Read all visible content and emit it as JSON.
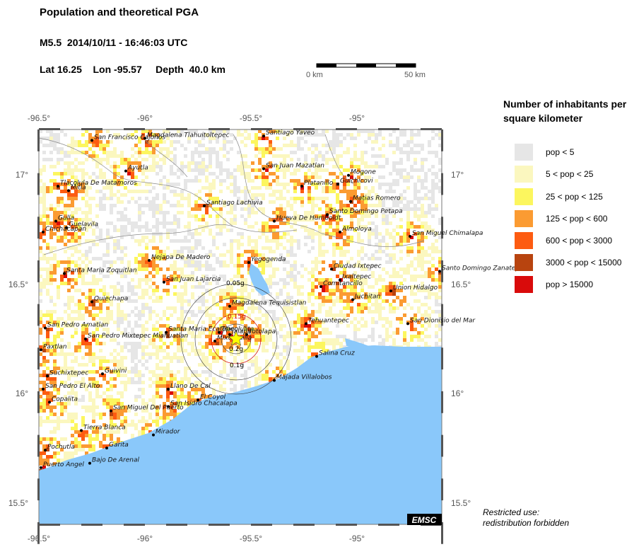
{
  "header": {
    "title": "Population and theoretical PGA",
    "event": "M5.5  2014/10/11 - 16:46:03 UTC",
    "location": "Lat 16.25    Lon -95.57     Depth  40.0 km"
  },
  "scalebar": {
    "start_label": "0 km",
    "end_label": "50 km"
  },
  "map": {
    "lon_ticks": [
      "-96.5°",
      "-96°",
      "-95.5°",
      "-95°"
    ],
    "lat_ticks": [
      "17°",
      "16.5°",
      "16°",
      "15.5°"
    ],
    "extent": {
      "lon_min": -96.5,
      "lon_max": -94.6,
      "lat_min": 15.4,
      "lat_max": 17.21
    },
    "epicenter": {
      "lon": -95.57,
      "lat": 16.25
    },
    "pga_labels": [
      "0.05g",
      "0.15g",
      "0.2g",
      "0.1g"
    ],
    "cities": [
      {
        "name": "Magdalena Tlahuitoltepec",
        "lon": -96.0,
        "lat": 17.17
      },
      {
        "name": "San Francisco Cajonos",
        "lon": -96.25,
        "lat": 17.16
      },
      {
        "name": "Santiago Yaveo",
        "lon": -95.44,
        "lat": 17.18
      },
      {
        "name": "Ayutla",
        "lon": -96.09,
        "lat": 17.02
      },
      {
        "name": "San Juan Mazatlan",
        "lon": -95.44,
        "lat": 17.03
      },
      {
        "name": "Mogone",
        "lon": -95.04,
        "lat": 17.0
      },
      {
        "name": "Tlacolula De Matamoros",
        "lon": -96.41,
        "lat": 16.95
      },
      {
        "name": "Mitla",
        "lon": -96.36,
        "lat": 16.93
      },
      {
        "name": "Platanillo",
        "lon": -95.26,
        "lat": 16.95
      },
      {
        "name": "Guichicovi",
        "lon": -95.09,
        "lat": 16.96
      },
      {
        "name": "Matias Romero",
        "lon": -95.03,
        "lat": 16.88
      },
      {
        "name": "Santiago Lachivia",
        "lon": -95.72,
        "lat": 16.86
      },
      {
        "name": "Gulla",
        "lon": -96.42,
        "lat": 16.79
      },
      {
        "name": "Guelavila",
        "lon": -96.37,
        "lat": 16.76
      },
      {
        "name": "Hueva De Humboldt",
        "lon": -95.39,
        "lat": 16.79
      },
      {
        "name": "Santo Domingo Petapa",
        "lon": -95.14,
        "lat": 16.82
      },
      {
        "name": "Chichacapan",
        "lon": -96.48,
        "lat": 16.74
      },
      {
        "name": "Almoloya",
        "lon": -95.08,
        "lat": 16.74
      },
      {
        "name": "San Miguel Chimalapa",
        "lon": -94.75,
        "lat": 16.72
      },
      {
        "name": "Nejapa De Madero",
        "lon": -95.98,
        "lat": 16.61
      },
      {
        "name": "Yegogenda",
        "lon": -95.51,
        "lat": 16.6
      },
      {
        "name": "Santa Maria Zoquitlan",
        "lon": -96.38,
        "lat": 16.55
      },
      {
        "name": "Ciudad Ixtepec",
        "lon": -95.12,
        "lat": 16.57
      },
      {
        "name": "San Juan Lajarcia",
        "lon": -95.91,
        "lat": 16.51
      },
      {
        "name": "Ixaltepec",
        "lon": -95.08,
        "lat": 16.52
      },
      {
        "name": "Comitancillo",
        "lon": -95.17,
        "lat": 16.49
      },
      {
        "name": "Union Hidalgo",
        "lon": -94.84,
        "lat": 16.47
      },
      {
        "name": "Santo Domingo Zanatepec",
        "lon": -94.61,
        "lat": 16.56
      },
      {
        "name": "Quiechapa",
        "lon": -96.25,
        "lat": 16.42
      },
      {
        "name": "Magdalena Tequisistlan",
        "lon": -95.6,
        "lat": 16.4
      },
      {
        "name": "Juchitan",
        "lon": -95.02,
        "lat": 16.43
      },
      {
        "name": "San Pedro Amatlan",
        "lon": -96.47,
        "lat": 16.3
      },
      {
        "name": "Tehuantepec",
        "lon": -95.24,
        "lat": 16.32
      },
      {
        "name": "San Dionisio del Mar",
        "lon": -94.76,
        "lat": 16.32
      },
      {
        "name": "Santa Maria Ecatepec",
        "lon": -95.9,
        "lat": 16.28
      },
      {
        "name": "Tlacolulita",
        "lon": -95.65,
        "lat": 16.28
      },
      {
        "name": "Jalapa",
        "lon": -95.6,
        "lat": 16.27
      },
      {
        "name": "Totolapa",
        "lon": -95.52,
        "lat": 16.27
      },
      {
        "name": "Mixtequilla",
        "lon": -95.67,
        "lat": 16.24
      },
      {
        "name": "San Pedro Mixtepec Miahuatlan",
        "lon": -96.28,
        "lat": 16.25
      },
      {
        "name": "Paxtlan",
        "lon": -96.49,
        "lat": 16.2
      },
      {
        "name": "Salina Cruz",
        "lon": -95.19,
        "lat": 16.17
      },
      {
        "name": "Suchixtepec",
        "lon": -96.46,
        "lat": 16.08
      },
      {
        "name": "Guivini",
        "lon": -96.2,
        "lat": 16.09
      },
      {
        "name": "Majada Villalobos",
        "lon": -95.39,
        "lat": 16.06
      },
      {
        "name": "San Pedro El Alto",
        "lon": -96.48,
        "lat": 16.02
      },
      {
        "name": "Llano De Cal",
        "lon": -95.89,
        "lat": 16.02
      },
      {
        "name": "Copalita",
        "lon": -96.45,
        "lat": 15.96
      },
      {
        "name": "El Coyol",
        "lon": -95.75,
        "lat": 15.97
      },
      {
        "name": "San Miguel Del Puerto",
        "lon": -96.16,
        "lat": 15.92
      },
      {
        "name": "San Isidro Chacalapa",
        "lon": -95.89,
        "lat": 15.94
      },
      {
        "name": "Tierra Blanca",
        "lon": -96.3,
        "lat": 15.83
      },
      {
        "name": "Mirador",
        "lon": -95.96,
        "lat": 15.81
      },
      {
        "name": "Pochutla",
        "lon": -96.47,
        "lat": 15.74
      },
      {
        "name": "Garita",
        "lon": -96.18,
        "lat": 15.75
      },
      {
        "name": "Bajo De Arenal",
        "lon": -96.26,
        "lat": 15.68
      },
      {
        "name": "Puerto Angel",
        "lon": -96.49,
        "lat": 15.66
      }
    ],
    "watermark": "EMSC"
  },
  "legend": {
    "title": "Number of inhabitants per square kilometer",
    "items": [
      {
        "label": "pop < 5",
        "color": "#e6e6e6"
      },
      {
        "label": "5 < pop < 25",
        "color": "#fbf7bf"
      },
      {
        "label": "25 < pop < 125",
        "color": "#fcf65e"
      },
      {
        "label": "125 < pop < 600",
        "color": "#fb9b32"
      },
      {
        "label": "600 < pop < 3000",
        "color": "#fd5b11"
      },
      {
        "label": "3000 < pop < 15000",
        "color": "#b8440f"
      },
      {
        "label": "pop > 15000",
        "color": "#d90b0b"
      }
    ]
  },
  "footer": {
    "restricted_line1": "Restricted use:",
    "restricted_line2": "redistribution forbidden"
  },
  "colors": {
    "sea": "#8ac8fa",
    "land": "#ffffff",
    "epicenter": "#ffff00",
    "pga_red": "#d00000"
  }
}
